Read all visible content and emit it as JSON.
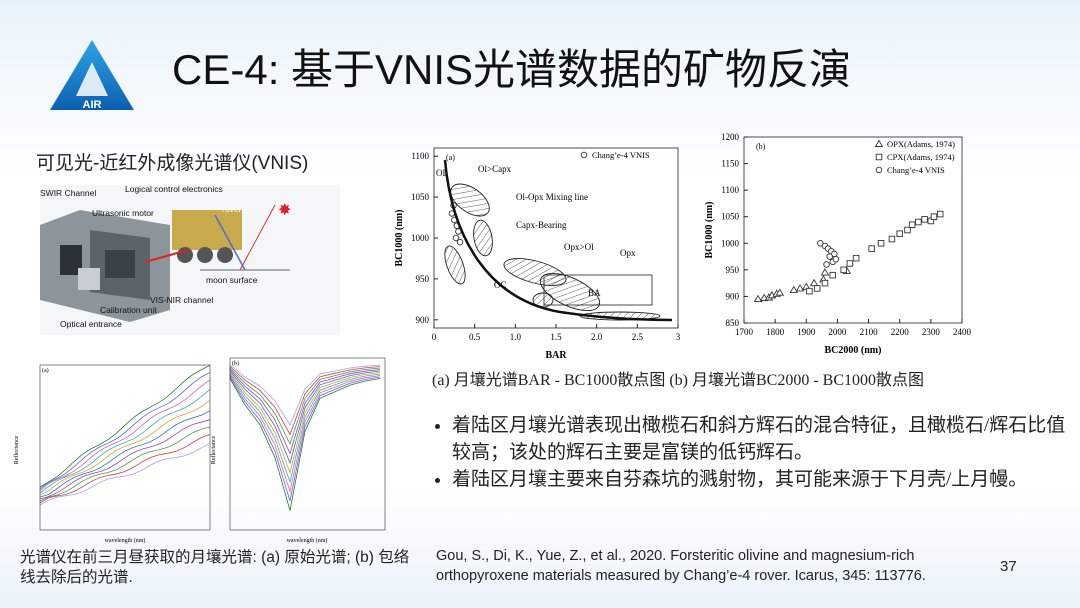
{
  "header": {
    "title": "CE-4: 基于VNIS光谱数据的矿物反演",
    "logo": "AIR"
  },
  "instrument": {
    "caption": "可见光-近红外成像光谱仪(VNIS)",
    "labels": [
      "SWIR Channel",
      "Logical control electronics",
      "Ultrasonic motor",
      "rover",
      "moon surface",
      "VIS-NIR channel",
      "Calibration unit",
      "Optical entrance"
    ]
  },
  "plot_a": {
    "type": "scatter",
    "panel": "(a)",
    "xlabel": "BAR",
    "ylabel": "BC1000 (nm)",
    "xlim": [
      0,
      3
    ],
    "xticks": [
      0,
      0.5,
      {
        "value": 1,
        "label": "1.0"
      },
      1.5,
      {
        "value": 2,
        "label": "2.0"
      },
      2.5,
      3
    ],
    "ylim": [
      890,
      1110
    ],
    "yticks": [
      900,
      950,
      1000,
      1050,
      1100
    ],
    "annotations": [
      "OL",
      "Ol>Capx",
      "Ol-Opx Mixing line",
      "Capx-Bearing",
      "Opx>Ol",
      "Opx",
      "OC",
      "BA"
    ],
    "series": [
      {
        "name": "Chang’e-4 VNIS",
        "color": "#333333",
        "x": [
          0.22,
          0.25,
          0.28,
          0.3,
          0.27,
          0.32,
          0.24
        ],
        "values": [
          1030,
          1022,
          1015,
          1008,
          1000,
          995,
          1040
        ]
      }
    ]
  },
  "plot_b": {
    "type": "scatter",
    "panel": "(b)",
    "xlabel": "BC2000 (nm)",
    "ylabel": "BC1000 (nm)",
    "xlim": [
      1700,
      2400
    ],
    "xticks": [
      1700,
      1800,
      1900,
      2000,
      2100,
      2200,
      2300,
      2400
    ],
    "ylim": [
      850,
      1200
    ],
    "yticks": [
      850,
      900,
      950,
      1000,
      1050,
      1100,
      1150,
      1200
    ],
    "series": [
      {
        "name": "OPX(Adams, 1974)",
        "marker": "triangle",
        "color": "#333333",
        "x": [
          1745,
          1765,
          1780,
          1790,
          1805,
          1815,
          1860,
          1880,
          1900,
          1925,
          1955,
          1960,
          2030
        ],
        "values": [
          895,
          897,
          898,
          902,
          905,
          907,
          912,
          915,
          918,
          925,
          932,
          945,
          948
        ]
      },
      {
        "name": "CPX(Adams, 1974)",
        "marker": "square",
        "color": "#333333",
        "x": [
          1910,
          1935,
          1960,
          1985,
          2020,
          2040,
          2060,
          2110,
          2140,
          2175,
          2200,
          2225,
          2240,
          2260,
          2280,
          2300,
          2310,
          2330
        ],
        "values": [
          910,
          915,
          925,
          940,
          950,
          962,
          972,
          990,
          1000,
          1008,
          1018,
          1025,
          1035,
          1040,
          1045,
          1042,
          1050,
          1055
        ]
      },
      {
        "name": "Chang’e-4 VNIS",
        "marker": "circle",
        "color": "#333333",
        "x": [
          1945,
          1960,
          1970,
          1980,
          1990,
          1975,
          1985,
          1965,
          1995
        ],
        "values": [
          1000,
          995,
          990,
          985,
          980,
          975,
          965,
          960,
          970
        ]
      }
    ]
  },
  "figure_caption": "(a) 月壤光谱BAR - BC1000散点图   (b) 月壤光谱BC2000 - BC1000散点图",
  "spectra": {
    "ylabel": "Reflectance",
    "xlabel": "wavelength (nm)",
    "panels": [
      "(a)",
      "(b)"
    ]
  },
  "bullets": [
    "着陆区月壤光谱表现出橄榄石和斜方辉石的混合特征，且橄榄石/辉石比值较高；该处的辉石主要是富镁的低钙辉石。",
    "着陆区月壤主要来自芬森坑的溅射物，其可能来源于下月壳/上月幔。"
  ],
  "spectra_caption": "光谱仪在前三月昼获取的月壤光谱: (a) 原始光谱; (b) 包络线去除后的光谱.",
  "reference": "Gou, S., Di, K., Yue, Z., et al., 2020. Forsteritic olivine and magnesium-rich orthopyroxene materials measured by Chang’e-4 rover. Icarus, 345: 113776.",
  "page_number": "37"
}
